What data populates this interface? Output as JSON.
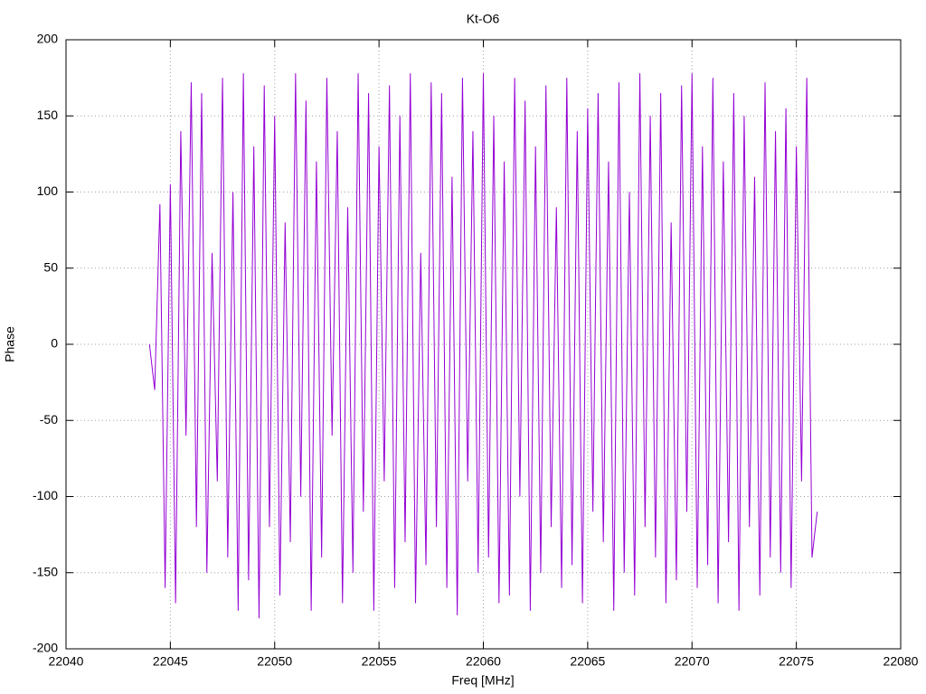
{
  "chart_data": {
    "type": "line",
    "title": "Kt-O6",
    "xlabel": "Freq [MHz]",
    "ylabel": "Phase",
    "x": [
      22044,
      22044.25,
      22044.5,
      22044.75,
      22045,
      22045.25,
      22045.5,
      22045.75,
      22046,
      22046.25,
      22046.5,
      22046.75,
      22047,
      22047.25,
      22047.5,
      22047.75,
      22048,
      22048.25,
      22048.5,
      22048.75,
      22049,
      22049.25,
      22049.5,
      22049.75,
      22050,
      22050.25,
      22050.5,
      22050.75,
      22051,
      22051.25,
      22051.5,
      22051.75,
      22052,
      22052.25,
      22052.5,
      22052.75,
      22053,
      22053.25,
      22053.5,
      22053.75,
      22054,
      22054.25,
      22054.5,
      22054.75,
      22055,
      22055.25,
      22055.5,
      22055.75,
      22056,
      22056.25,
      22056.5,
      22056.75,
      22057,
      22057.25,
      22057.5,
      22057.75,
      22058,
      22058.25,
      22058.5,
      22058.75,
      22059,
      22059.25,
      22059.5,
      22059.75,
      22060,
      22060.25,
      22060.5,
      22060.75,
      22061,
      22061.25,
      22061.5,
      22061.75,
      22062,
      22062.25,
      22062.5,
      22062.75,
      22063,
      22063.25,
      22063.5,
      22063.75,
      22064,
      22064.25,
      22064.5,
      22064.75,
      22065,
      22065.25,
      22065.5,
      22065.75,
      22066,
      22066.25,
      22066.5,
      22066.75,
      22067,
      22067.25,
      22067.5,
      22067.75,
      22068,
      22068.25,
      22068.5,
      22068.75,
      22069,
      22069.25,
      22069.5,
      22069.75,
      22070,
      22070.25,
      22070.5,
      22070.75,
      22071,
      22071.25,
      22071.5,
      22071.75,
      22072,
      22072.25,
      22072.5,
      22072.75,
      22073,
      22073.25,
      22073.5,
      22073.75,
      22074,
      22074.25,
      22074.5,
      22074.75,
      22075,
      22075.25,
      22075.5,
      22075.75,
      22076
    ],
    "series": [
      {
        "name": "Kt-O6",
        "color": "#9400d3",
        "values": [
          0,
          -30,
          92,
          -160,
          105,
          -170,
          140,
          -60,
          172,
          -120,
          165,
          -150,
          60,
          -90,
          175,
          -140,
          100,
          -175,
          178,
          -155,
          130,
          -180,
          170,
          -120,
          150,
          -165,
          80,
          -130,
          178,
          -100,
          160,
          -175,
          120,
          -140,
          175,
          -60,
          140,
          -170,
          90,
          -150,
          178,
          -110,
          165,
          -175,
          130,
          -90,
          170,
          -160,
          150,
          -130,
          178,
          -170,
          60,
          -145,
          172,
          -120,
          165,
          -160,
          110,
          -178,
          175,
          -90,
          140,
          -150,
          178,
          -140,
          150,
          -170,
          120,
          -165,
          175,
          -100,
          160,
          -175,
          130,
          -150,
          170,
          -120,
          90,
          -160,
          175,
          -145,
          140,
          -170,
          155,
          -110,
          165,
          -130,
          120,
          -175,
          172,
          -150,
          100,
          -165,
          178,
          -120,
          150,
          -140,
          165,
          -170,
          80,
          -155,
          170,
          -110,
          178,
          -160,
          130,
          -145,
          175,
          -170,
          120,
          -130,
          165,
          -175,
          150,
          -120,
          110,
          -165,
          172,
          -140,
          140,
          -150,
          155,
          -160,
          130,
          -90,
          175,
          -140,
          -110
        ]
      }
    ],
    "xlim": [
      22040,
      22080
    ],
    "xticks": [
      22040,
      22045,
      22050,
      22055,
      22060,
      22065,
      22070,
      22075,
      22080
    ],
    "ylim": [
      -200,
      200
    ],
    "yticks": [
      -200,
      -150,
      -100,
      -50,
      0,
      50,
      100,
      150,
      200
    ],
    "grid": true
  }
}
